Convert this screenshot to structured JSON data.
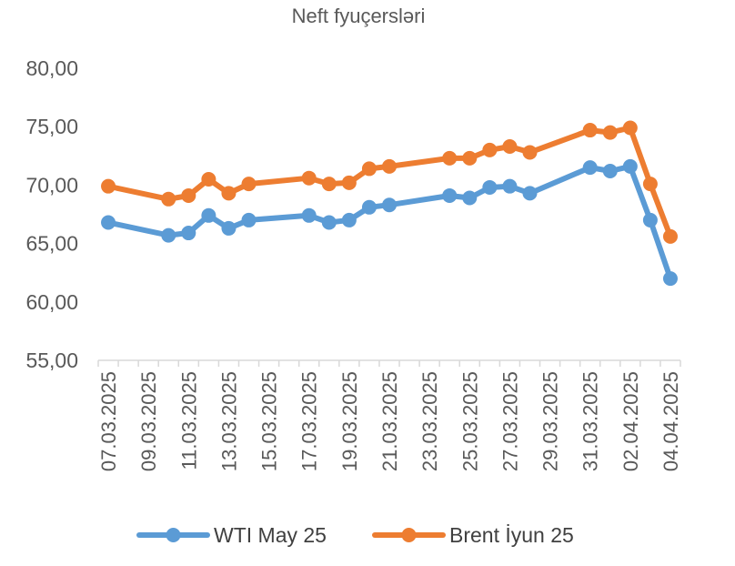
{
  "chart_data": {
    "type": "line",
    "title": "Neft fyuçersləri",
    "xlabel": "",
    "ylabel": "",
    "ylim": [
      55,
      80
    ],
    "yticks": [
      "55,00",
      "60,00",
      "65,00",
      "70,00",
      "75,00",
      "80,00"
    ],
    "x_range": [
      "2025-03-07",
      "2025-04-04"
    ],
    "xticks": [
      "07.03.2025",
      "09.03.2025",
      "11.03.2025",
      "13.03.2025",
      "15.03.2025",
      "17.03.2025",
      "19.03.2025",
      "21.03.2025",
      "23.03.2025",
      "25.03.2025",
      "27.03.2025",
      "29.03.2025",
      "31.03.2025",
      "02.04.2025",
      "04.04.2025"
    ],
    "x": [
      "2025-03-07",
      "2025-03-10",
      "2025-03-11",
      "2025-03-12",
      "2025-03-13",
      "2025-03-14",
      "2025-03-17",
      "2025-03-18",
      "2025-03-19",
      "2025-03-20",
      "2025-03-21",
      "2025-03-24",
      "2025-03-25",
      "2025-03-26",
      "2025-03-27",
      "2025-03-28",
      "2025-03-31",
      "2025-04-01",
      "2025-04-02",
      "2025-04-03",
      "2025-04-04"
    ],
    "series": [
      {
        "name": "WTI May 25",
        "color": "#5b9bd5",
        "values": [
          66.8,
          65.7,
          65.9,
          67.4,
          66.3,
          67.0,
          67.4,
          66.8,
          67.0,
          68.1,
          68.3,
          69.1,
          68.9,
          69.8,
          69.9,
          69.3,
          71.5,
          71.2,
          71.6,
          67.0,
          62.0
        ]
      },
      {
        "name": "Brent İyun 25",
        "color": "#ed7d31",
        "values": [
          69.9,
          68.8,
          69.1,
          70.5,
          69.3,
          70.1,
          70.6,
          70.1,
          70.2,
          71.4,
          71.6,
          72.3,
          72.3,
          73.0,
          73.3,
          72.8,
          74.7,
          74.5,
          74.9,
          70.1,
          65.6
        ]
      }
    ],
    "grid": false,
    "legend": "bottom"
  }
}
